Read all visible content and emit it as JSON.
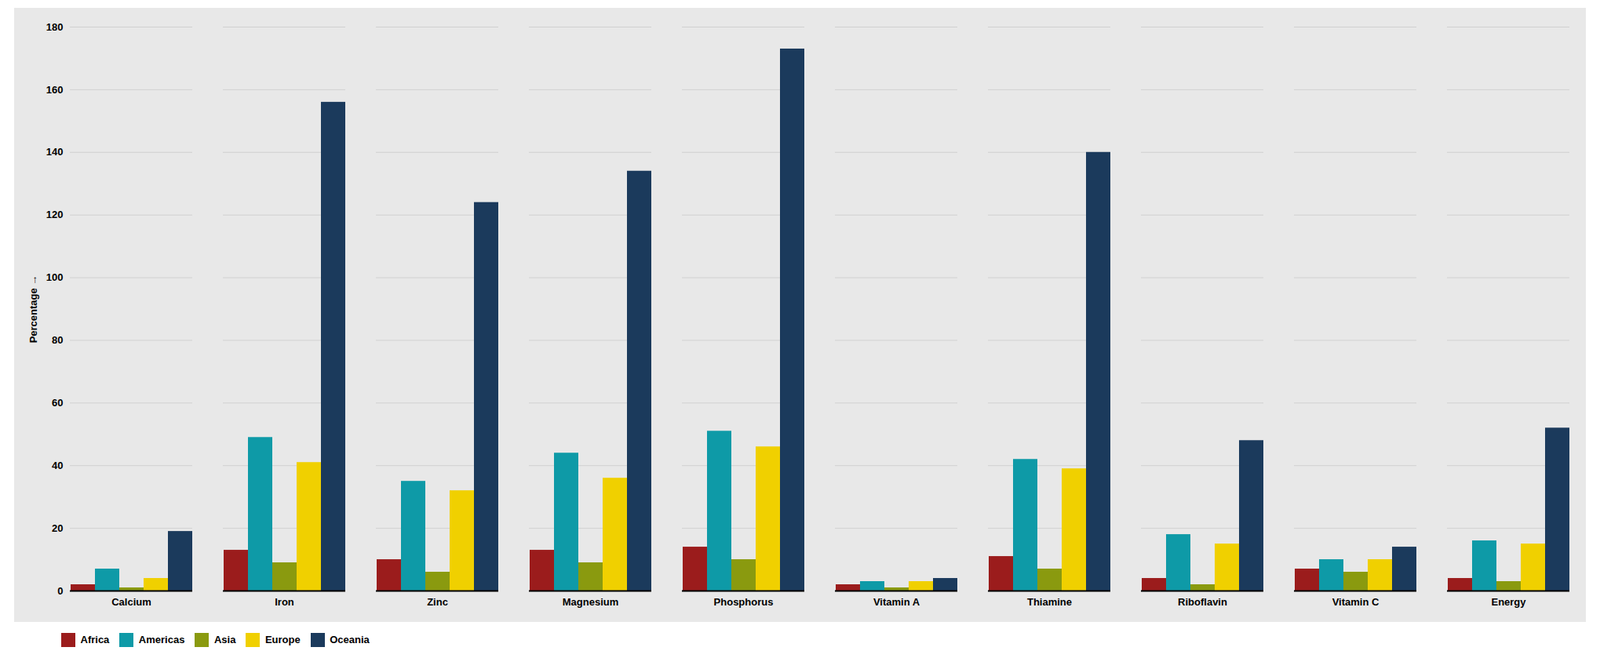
{
  "chart_data": {
    "type": "bar",
    "categories": [
      "Calcium",
      "Iron",
      "Zinc",
      "Magnesium",
      "Phosphorus",
      "Vitamin A",
      "Thiamine",
      "Riboflavin",
      "Vitamin C",
      "Energy"
    ],
    "series": [
      {
        "name": "Africa",
        "color": "#9b1c1c",
        "values": [
          2,
          13,
          10,
          13,
          14,
          2,
          11,
          4,
          7,
          4
        ]
      },
      {
        "name": "Americas",
        "color": "#0e9aa7",
        "values": [
          7,
          49,
          35,
          44,
          51,
          3,
          42,
          18,
          10,
          16
        ]
      },
      {
        "name": "Asia",
        "color": "#8a9a0f",
        "values": [
          1,
          9,
          6,
          9,
          10,
          1,
          7,
          2,
          6,
          3
        ]
      },
      {
        "name": "Europe",
        "color": "#f0d000",
        "values": [
          4,
          41,
          32,
          36,
          46,
          3,
          39,
          15,
          10,
          15
        ]
      },
      {
        "name": "Oceania",
        "color": "#1b3a5c",
        "values": [
          19,
          156,
          124,
          134,
          173,
          4,
          140,
          48,
          14,
          52
        ]
      }
    ],
    "ylabel": "Percentage",
    "ylim": [
      0,
      180
    ],
    "yticks": [
      0,
      20,
      40,
      60,
      80,
      100,
      120,
      140,
      160,
      180
    ],
    "grid": true,
    "legend": "bottom"
  }
}
